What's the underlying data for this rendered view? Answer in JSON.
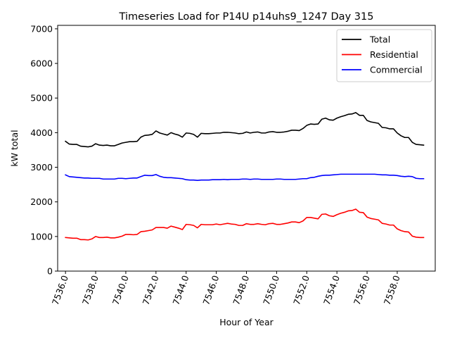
{
  "chart_data": {
    "type": "line",
    "title": "Timeseries Load for P14U p14uhs9_1247  Day 315",
    "xlabel": "Hour of Year",
    "ylabel": "kW total",
    "xlim": [
      7535.48,
      7560.52
    ],
    "ylim": [
      0,
      7100
    ],
    "x_ticks": [
      7536.0,
      7538.0,
      7540.0,
      7542.0,
      7544.0,
      7546.0,
      7548.0,
      7550.0,
      7552.0,
      7554.0,
      7556.0,
      7558.0
    ],
    "x_tick_labels": [
      "7536.0",
      "7538.0",
      "7540.0",
      "7542.0",
      "7544.0",
      "7546.0",
      "7548.0",
      "7550.0",
      "7552.0",
      "7554.0",
      "7556.0",
      "7558.0"
    ],
    "y_ticks": [
      0,
      1000,
      2000,
      3000,
      4000,
      5000,
      6000,
      7000
    ],
    "y_tick_labels": [
      "0",
      "1000",
      "2000",
      "3000",
      "4000",
      "5000",
      "6000",
      "7000"
    ],
    "legend_position": "top-right",
    "x_start": 7536.0,
    "x_step": 0.25,
    "series": [
      {
        "name": "Total",
        "color": "#000000",
        "values": [
          3750,
          3670,
          3660,
          3660,
          3610,
          3600,
          3590,
          3610,
          3680,
          3640,
          3630,
          3640,
          3620,
          3620,
          3660,
          3700,
          3720,
          3740,
          3740,
          3750,
          3870,
          3920,
          3930,
          3950,
          4050,
          3990,
          3960,
          3930,
          4000,
          3960,
          3930,
          3870,
          3990,
          3980,
          3950,
          3870,
          3980,
          3970,
          3970,
          3980,
          3990,
          3990,
          4010,
          4010,
          4000,
          3990,
          3970,
          3980,
          4020,
          3990,
          4010,
          4020,
          3990,
          3990,
          4020,
          4030,
          4010,
          4010,
          4020,
          4040,
          4070,
          4070,
          4060,
          4120,
          4210,
          4250,
          4240,
          4250,
          4390,
          4420,
          4370,
          4360,
          4420,
          4460,
          4490,
          4530,
          4540,
          4580,
          4500,
          4500,
          4350,
          4310,
          4290,
          4270,
          4150,
          4140,
          4110,
          4110,
          3990,
          3910,
          3860,
          3860,
          3720,
          3660,
          3650,
          3640
        ]
      },
      {
        "name": "Residential",
        "color": "#ff0000",
        "values": [
          970,
          960,
          950,
          950,
          910,
          910,
          900,
          930,
          1000,
          970,
          970,
          980,
          960,
          960,
          980,
          1010,
          1060,
          1060,
          1050,
          1060,
          1140,
          1150,
          1170,
          1190,
          1260,
          1260,
          1260,
          1240,
          1300,
          1270,
          1240,
          1200,
          1350,
          1340,
          1320,
          1250,
          1350,
          1340,
          1340,
          1340,
          1360,
          1340,
          1360,
          1380,
          1360,
          1350,
          1320,
          1320,
          1370,
          1350,
          1350,
          1370,
          1350,
          1340,
          1370,
          1380,
          1350,
          1350,
          1370,
          1390,
          1420,
          1420,
          1400,
          1450,
          1550,
          1550,
          1530,
          1510,
          1640,
          1650,
          1600,
          1580,
          1630,
          1670,
          1700,
          1740,
          1750,
          1790,
          1700,
          1690,
          1560,
          1520,
          1500,
          1480,
          1380,
          1360,
          1330,
          1330,
          1220,
          1170,
          1140,
          1130,
          1010,
          980,
          970,
          970
        ]
      },
      {
        "name": "Commercial",
        "color": "#0000ff",
        "values": [
          2780,
          2730,
          2720,
          2710,
          2700,
          2690,
          2690,
          2680,
          2680,
          2680,
          2660,
          2660,
          2660,
          2660,
          2680,
          2680,
          2670,
          2680,
          2690,
          2690,
          2730,
          2770,
          2760,
          2760,
          2790,
          2740,
          2710,
          2700,
          2700,
          2690,
          2680,
          2670,
          2640,
          2630,
          2630,
          2620,
          2630,
          2630,
          2630,
          2640,
          2640,
          2640,
          2650,
          2640,
          2650,
          2650,
          2650,
          2660,
          2660,
          2650,
          2660,
          2660,
          2650,
          2650,
          2650,
          2650,
          2660,
          2660,
          2650,
          2650,
          2650,
          2650,
          2660,
          2670,
          2670,
          2700,
          2710,
          2740,
          2760,
          2770,
          2770,
          2780,
          2790,
          2800,
          2800,
          2800,
          2800,
          2800,
          2800,
          2800,
          2800,
          2800,
          2800,
          2790,
          2780,
          2780,
          2770,
          2770,
          2760,
          2740,
          2730,
          2740,
          2730,
          2680,
          2670,
          2670
        ]
      }
    ]
  }
}
